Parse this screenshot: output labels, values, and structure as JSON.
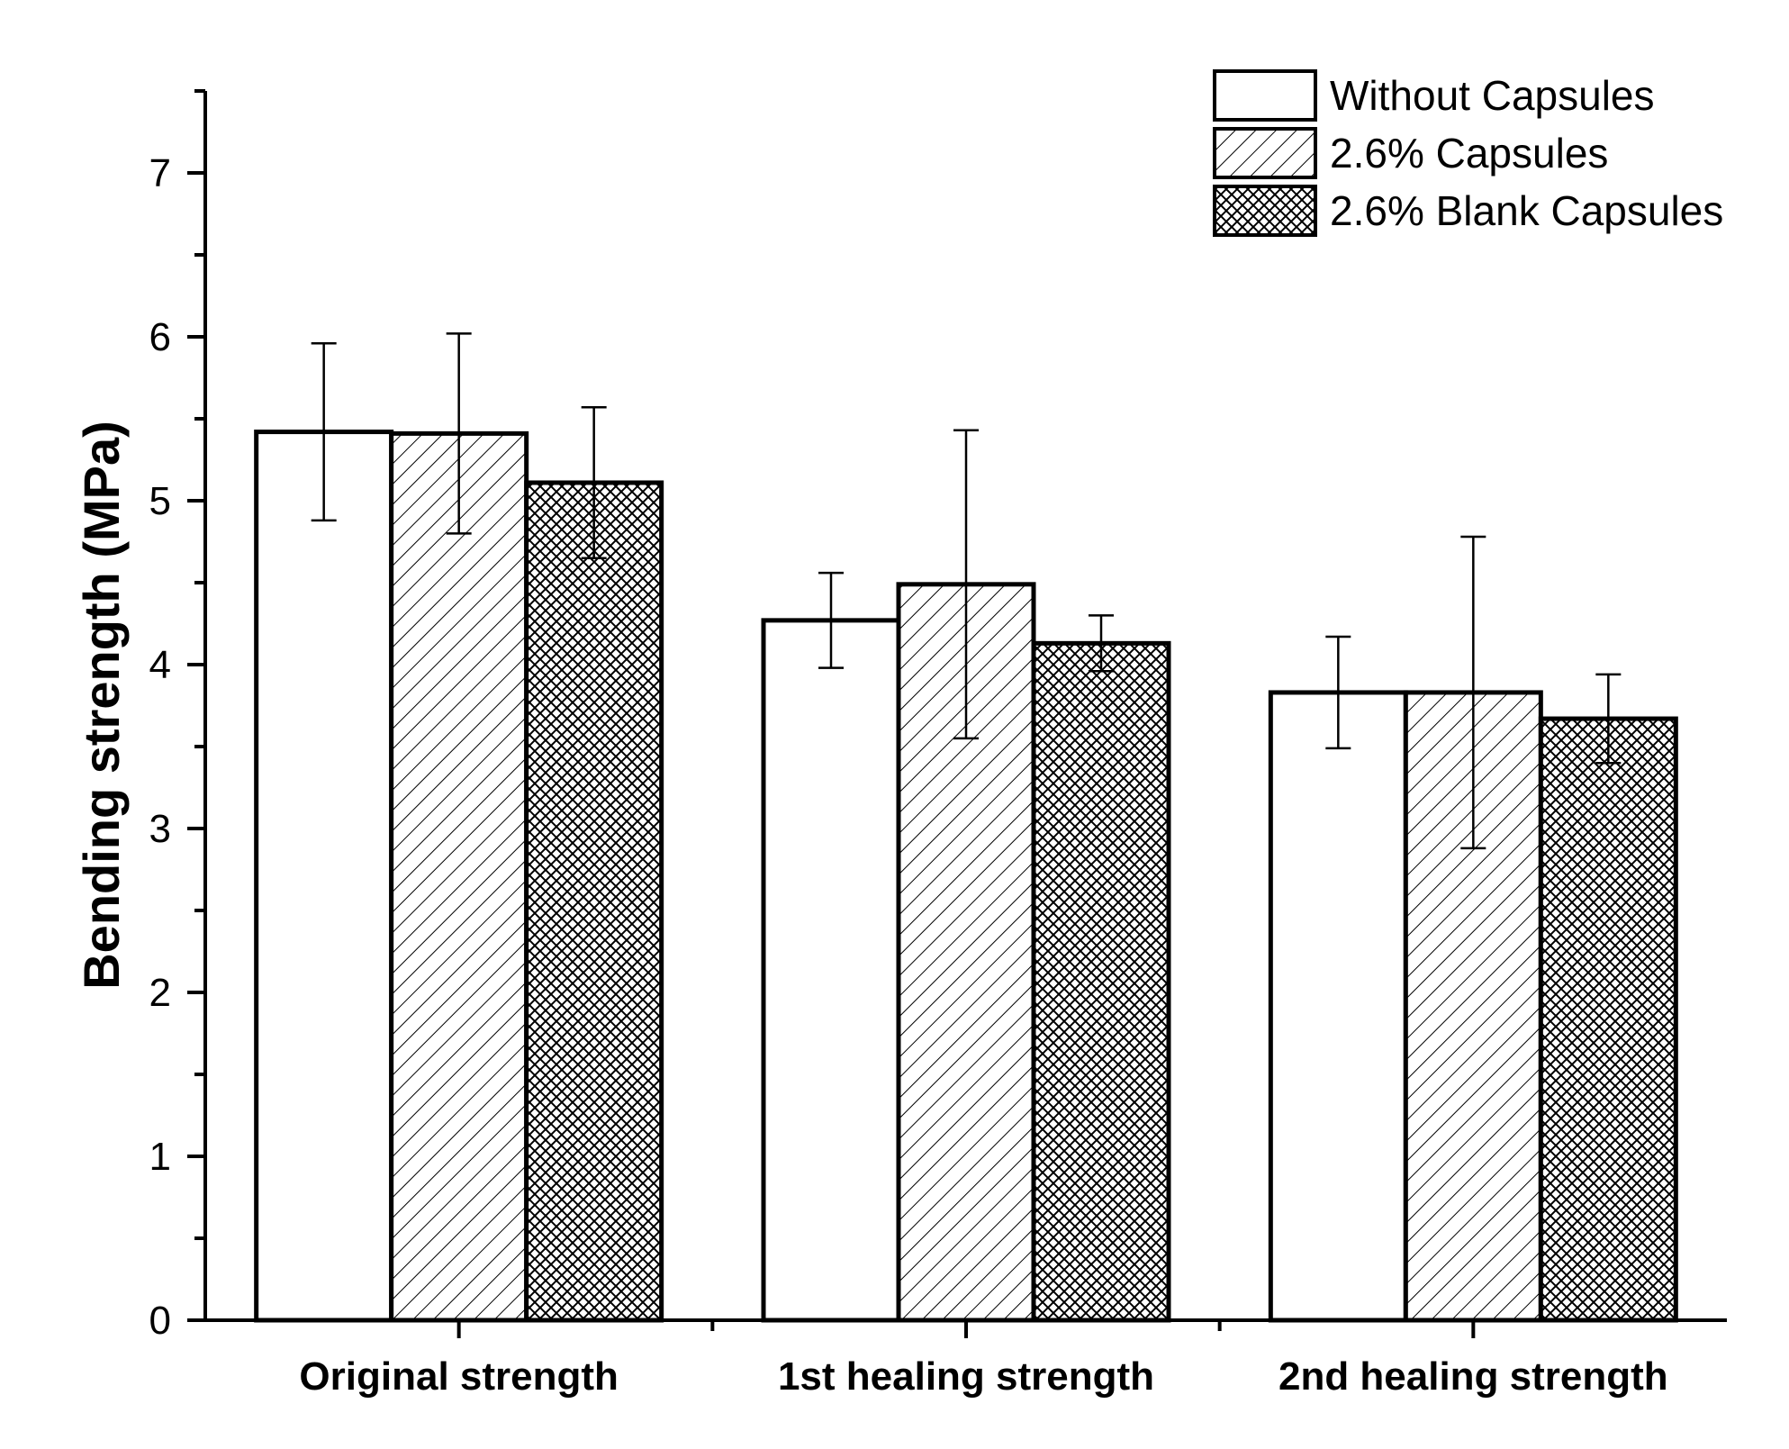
{
  "chart_data": {
    "type": "bar",
    "title": "",
    "xlabel": "",
    "ylabel": "Bending strength (MPa)",
    "ylim": [
      0,
      7.5
    ],
    "yticks": [
      0,
      1,
      2,
      3,
      4,
      5,
      6,
      7
    ],
    "grid": false,
    "legend_position": "top-right",
    "categories": [
      "Original strength",
      "1st healing strength",
      "2nd healing strength"
    ],
    "series": [
      {
        "name": "Without Capsules",
        "pattern": "none",
        "values": [
          5.42,
          4.27,
          3.83
        ],
        "errors": [
          0.54,
          0.29,
          0.34
        ]
      },
      {
        "name": "2.6% Capsules",
        "pattern": "diagonal-hatch",
        "values": [
          5.41,
          4.49,
          3.83
        ],
        "errors": [
          0.61,
          0.94,
          0.95
        ]
      },
      {
        "name": "2.6% Blank Capsules",
        "pattern": "cross-hatch",
        "values": [
          5.11,
          4.13,
          3.67
        ],
        "errors": [
          0.46,
          0.17,
          0.27
        ]
      }
    ],
    "colors": {
      "bar_fill": "#ffffff",
      "stroke": "#000000"
    }
  }
}
